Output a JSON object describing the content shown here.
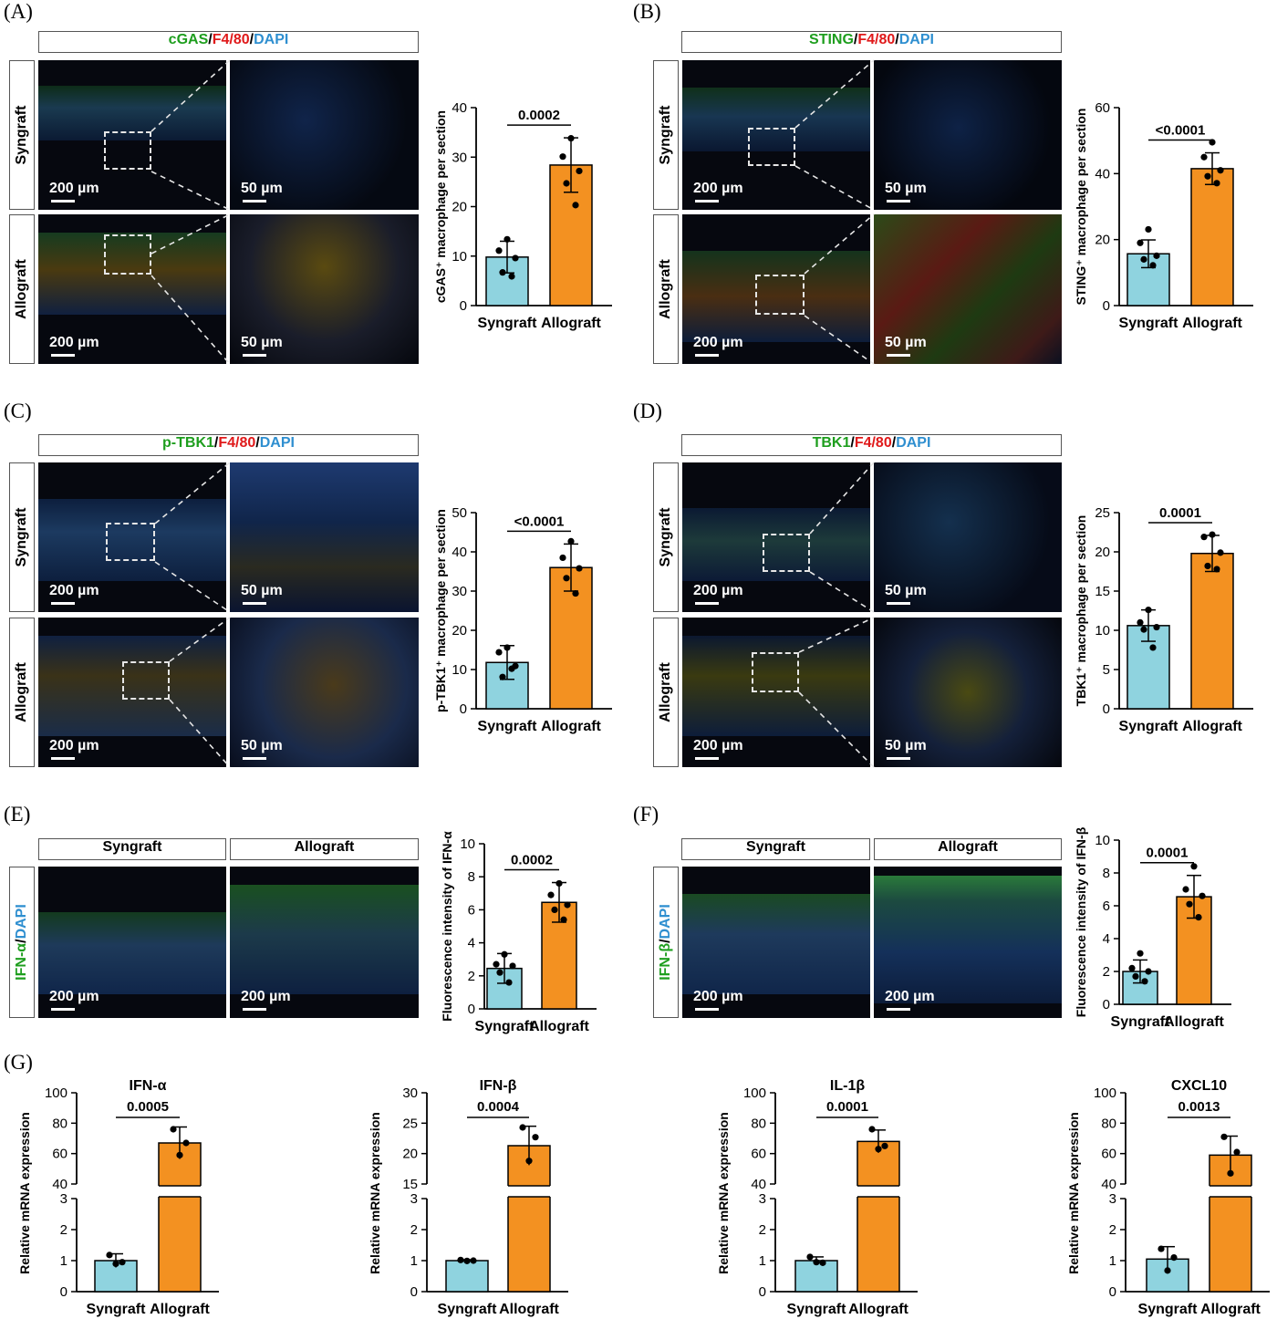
{
  "panels": {
    "A": {
      "label": "(A)",
      "stain": [
        "cGAS",
        "F4/80",
        "DAPI"
      ],
      "rows": [
        "Syngraft",
        "Allograft"
      ],
      "scale_low": "200 µm",
      "scale_high": "50 µm"
    },
    "B": {
      "label": "(B)",
      "stain": [
        "STING",
        "F4/80",
        "DAPI"
      ],
      "rows": [
        "Syngraft",
        "Allograft"
      ],
      "scale_low": "200 µm",
      "scale_high": "50 µm"
    },
    "C": {
      "label": "(C)",
      "stain": [
        "p-TBK1",
        "F4/80",
        "DAPI"
      ],
      "rows": [
        "Syngraft",
        "Allograft"
      ],
      "scale_low": "200 µm",
      "scale_high": "50 µm"
    },
    "D": {
      "label": "(D)",
      "stain": [
        "TBK1",
        "F4/80",
        "DAPI"
      ],
      "rows": [
        "Syngraft",
        "Allograft"
      ],
      "scale_low": "200 µm",
      "scale_high": "50 µm"
    },
    "E": {
      "label": "(E)",
      "cols": [
        "Syngraft",
        "Allograft"
      ],
      "side": [
        "IFN-α",
        "DAPI"
      ],
      "scale": "200 µm"
    },
    "F": {
      "label": "(F)",
      "cols": [
        "Syngraft",
        "Allograft"
      ],
      "side": [
        "IFN-β",
        "DAPI"
      ],
      "scale": "200 µm"
    },
    "G": {
      "label": "(G)"
    }
  },
  "colors": {
    "syngraft": "#8fd3df",
    "allograft": "#f39121",
    "green": "#1e9e1e",
    "red": "#e0191a",
    "blue": "#2f8fd0"
  },
  "chart_data": [
    {
      "id": "A",
      "type": "bar",
      "categories": [
        "Syngraft",
        "Allograft"
      ],
      "values": [
        9.8,
        28.4
      ],
      "errors": [
        3.2,
        5.5
      ],
      "points": [
        [
          13.4,
          11.1,
          9.6,
          6.7,
          5.9
        ],
        [
          33.8,
          30.1,
          27.2,
          24.7,
          20.3
        ]
      ],
      "ylabel": "cGAS⁺ macrophage per section",
      "ylim": [
        0,
        40
      ],
      "yticks": [
        0,
        10,
        20,
        30,
        40
      ],
      "significance": "0.0002"
    },
    {
      "id": "B",
      "type": "bar",
      "categories": [
        "Syngraft",
        "Allograft"
      ],
      "values": [
        15.7,
        41.5
      ],
      "errors": [
        4.2,
        4.8
      ],
      "points": [
        [
          23.1,
          19.0,
          15.1,
          14.0,
          12.2
        ],
        [
          49.5,
          45.0,
          41.0,
          39.2,
          37.1
        ]
      ],
      "ylabel": "STING⁺ macrophage per section",
      "ylim": [
        0,
        60
      ],
      "yticks": [
        0,
        20,
        40,
        60
      ],
      "significance": "<0.0001"
    },
    {
      "id": "C",
      "type": "bar",
      "categories": [
        "Syngraft",
        "Allograft"
      ],
      "values": [
        11.8,
        36.0
      ],
      "errors": [
        4.3,
        6.0
      ],
      "points": [
        [
          15.6,
          14.4,
          10.9,
          8.1,
          10.2
        ],
        [
          42.7,
          38.5,
          35.8,
          33.3,
          29.4
        ]
      ],
      "ylabel": "p-TBK1⁺ macrophage per section",
      "ylim": [
        0,
        50
      ],
      "yticks": [
        0,
        10,
        20,
        30,
        40,
        50
      ],
      "significance": "<0.0001"
    },
    {
      "id": "D",
      "type": "bar",
      "categories": [
        "Syngraft",
        "Allograft"
      ],
      "values": [
        10.6,
        19.8
      ],
      "errors": [
        2.0,
        2.3
      ],
      "points": [
        [
          12.6,
          11.0,
          10.4,
          10.1,
          7.8
        ],
        [
          22.2,
          21.9,
          19.9,
          18.2,
          17.8
        ]
      ],
      "ylabel": "TBK1⁺ macrophage per section",
      "ylim": [
        0,
        25
      ],
      "yticks": [
        0,
        5,
        10,
        15,
        20,
        25
      ],
      "significance": "0.0001"
    },
    {
      "id": "E",
      "type": "bar",
      "categories": [
        "Syngraft",
        "Allograft"
      ],
      "values": [
        2.45,
        6.45
      ],
      "errors": [
        0.9,
        1.2
      ],
      "points": [
        [
          3.3,
          2.7,
          2.6,
          2.2,
          1.6
        ],
        [
          7.6,
          6.9,
          6.3,
          6.0,
          5.4
        ]
      ],
      "ylabel": "Fluorescence intensity of IFN-α",
      "ylim": [
        0,
        10
      ],
      "yticks": [
        0,
        2,
        4,
        6,
        8,
        10
      ],
      "significance": "0.0002"
    },
    {
      "id": "F",
      "type": "bar",
      "categories": [
        "Syngraft",
        "Allograft"
      ],
      "values": [
        2.0,
        6.55
      ],
      "errors": [
        0.7,
        1.3
      ],
      "points": [
        [
          3.1,
          2.2,
          2.0,
          1.7,
          1.4
        ],
        [
          8.4,
          7.0,
          6.6,
          6.1,
          5.3
        ]
      ],
      "ylabel": "Fluorescence intensity of IFN-β",
      "ylim": [
        0,
        10
      ],
      "yticks": [
        0,
        2,
        4,
        6,
        8,
        10
      ],
      "significance": "0.0001"
    },
    {
      "id": "G1",
      "type": "bar",
      "title": "IFN-α",
      "categories": [
        "Syngraft",
        "Allograft"
      ],
      "values": [
        1.0,
        67
      ],
      "errors": [
        0.22,
        10.5
      ],
      "points": [
        [
          1.18,
          0.95,
          0.9
        ],
        [
          76,
          67,
          59
        ]
      ],
      "ylabel": "Relative mRNA expression",
      "broken_axis": true,
      "yticks_lower": [
        0,
        1,
        2,
        3
      ],
      "yticks_upper": [
        40,
        60,
        80,
        100
      ],
      "significance": "0.0005"
    },
    {
      "id": "G2",
      "type": "bar",
      "title": "IFN-β",
      "categories": [
        "Syngraft",
        "Allograft"
      ],
      "values": [
        1.0,
        21.3
      ],
      "errors": [
        0.03,
        3.2
      ],
      "points": [
        [
          1.02,
          1.0,
          0.99
        ],
        [
          24.3,
          22.7,
          18.8
        ]
      ],
      "ylabel": "Relative mRNA expression",
      "broken_axis": true,
      "yticks_lower": [
        0,
        1,
        2,
        3
      ],
      "yticks_upper": [
        15,
        20,
        25,
        30
      ],
      "significance": "0.0004"
    },
    {
      "id": "G3",
      "type": "bar",
      "title": "IL-1β",
      "categories": [
        "Syngraft",
        "Allograft"
      ],
      "values": [
        1.0,
        68
      ],
      "errors": [
        0.12,
        7.5
      ],
      "points": [
        [
          1.12,
          0.93,
          0.95
        ],
        [
          76,
          65,
          63
        ]
      ],
      "ylabel": "Relative mRNA expression",
      "broken_axis": true,
      "yticks_lower": [
        0,
        1,
        2,
        3
      ],
      "yticks_upper": [
        40,
        60,
        80,
        100
      ],
      "significance": "0.0001"
    },
    {
      "id": "G4",
      "type": "bar",
      "title": "CXCL10",
      "categories": [
        "Syngraft",
        "Allograft"
      ],
      "values": [
        1.05,
        59
      ],
      "errors": [
        0.4,
        12.5
      ],
      "points": [
        [
          1.38,
          1.1,
          0.68
        ],
        [
          71,
          61,
          47
        ]
      ],
      "ylabel": "Relative mRNA expression",
      "broken_axis": true,
      "yticks_lower": [
        0,
        1,
        2,
        3
      ],
      "yticks_upper": [
        40,
        60,
        80,
        100
      ],
      "significance": "0.0013"
    }
  ]
}
